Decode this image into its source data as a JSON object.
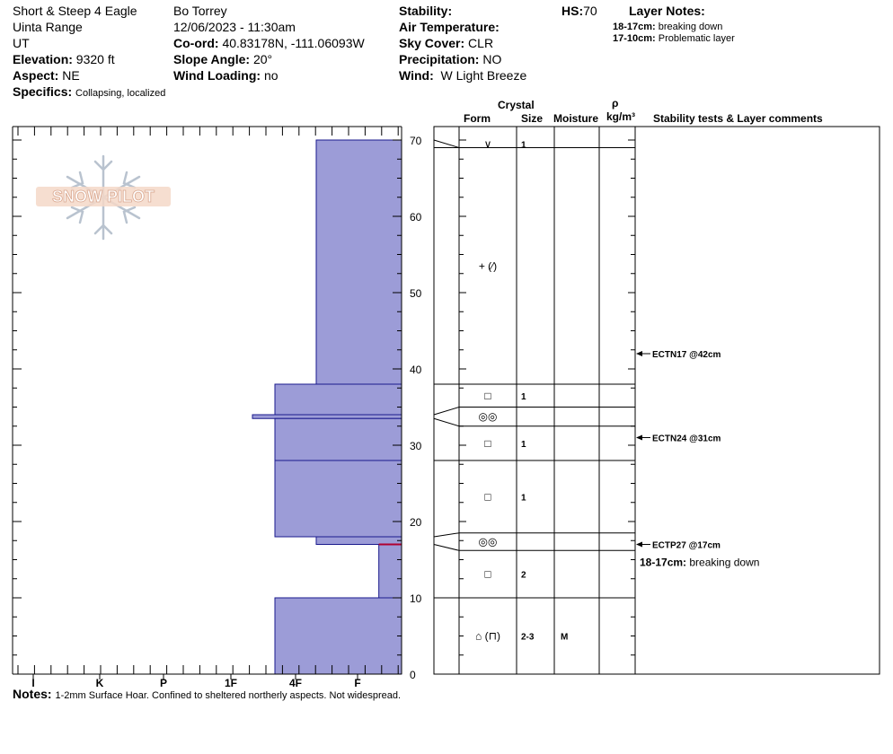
{
  "header": {
    "site": "Short & Steep 4 Eagle",
    "range": "Uinta Range",
    "state": "UT",
    "elevation_label": "Elevation:",
    "elevation": "9320 ft",
    "aspect_label": "Aspect:",
    "aspect": "NE",
    "specifics_label": "Specifics:",
    "specifics": "Collapsing, localized",
    "observer": "Bo Torrey",
    "datetime": "12/06/2023 - 11:30am",
    "coord_label": "Co-ord:",
    "coord": "40.83178N, -111.06093W",
    "slope_label": "Slope Angle:",
    "slope": "20°",
    "wind_loading_label": "Wind Loading:",
    "wind_loading": "no",
    "stability_label": "Stability:",
    "air_temp_label": "Air Temperature:",
    "sky_label": "Sky Cover:",
    "sky": "CLR",
    "precip_label": "Precipitation:",
    "precip": "NO",
    "wind_label": "Wind:",
    "wind": "W Light Breeze",
    "hs_label": "HS:",
    "hs": "70",
    "layer_notes_label": "Layer Notes:",
    "layer_notes": [
      {
        "range": "18-17cm:",
        "text": "breaking down"
      },
      {
        "range": "17-10cm:",
        "text": "Problematic layer"
      }
    ]
  },
  "columns": {
    "crystal": "Crystal",
    "form": "Form",
    "size": "Size",
    "moisture": "Moisture",
    "rho": "ρ",
    "density_unit": "kg/m³",
    "stability": "Stability tests & Layer comments"
  },
  "logo_text": "SNOW PILOT",
  "notes_label": "Notes:",
  "notes": "1-2mm Surface Hoar. Confined to sheltered northerly aspects. Not widespread.",
  "chart_data": {
    "type": "snow_profile",
    "hs": 70,
    "y_unit": "cm",
    "ylim": [
      0,
      70
    ],
    "y_ticks": [
      0,
      10,
      20,
      30,
      40,
      50,
      60,
      70
    ],
    "hardness_scale": [
      "I",
      "K",
      "P",
      "1F",
      "4F",
      "F"
    ],
    "hardness_layers": [
      {
        "top": 70,
        "bottom": 38,
        "hardness": "4F+"
      },
      {
        "top": 38,
        "bottom": 34,
        "hardness": "4F-"
      },
      {
        "top": 34,
        "bottom": 33.5,
        "hardness": "1F+"
      },
      {
        "top": 33.5,
        "bottom": 28,
        "hardness": "4F-"
      },
      {
        "top": 28,
        "bottom": 18,
        "hardness": "4F-"
      },
      {
        "top": 18,
        "bottom": 17,
        "hardness": "4F+"
      },
      {
        "top": 17,
        "bottom": 10,
        "hardness": "F+"
      },
      {
        "top": 10,
        "bottom": 0,
        "hardness": "4F-"
      }
    ],
    "red_marker_height": 17,
    "grain_layers": [
      {
        "top": 70,
        "bottom": 69,
        "form": "∨",
        "size": "1",
        "moisture": ""
      },
      {
        "top": 69,
        "bottom": 38,
        "form": "+ (∕)",
        "size": "",
        "moisture": ""
      },
      {
        "top": 38,
        "bottom": 35,
        "form": "□",
        "size": "1",
        "moisture": ""
      },
      {
        "top": 35,
        "bottom": 32.5,
        "form": "◎◎",
        "size": "",
        "moisture": ""
      },
      {
        "top": 32.5,
        "bottom": 28,
        "form": "□",
        "size": "1",
        "moisture": ""
      },
      {
        "top": 28,
        "bottom": 18.5,
        "form": "□",
        "size": "1",
        "moisture": ""
      },
      {
        "top": 18.5,
        "bottom": 16.2,
        "form": "◎◎",
        "size": "",
        "moisture": ""
      },
      {
        "top": 16.2,
        "bottom": 10,
        "form": "□",
        "size": "2",
        "moisture": ""
      },
      {
        "top": 10,
        "bottom": 0,
        "form": "⌂ (⊓)",
        "size": "2-3",
        "moisture": "M"
      }
    ],
    "stability_tests": [
      {
        "label": "ECTN17 @42cm",
        "height": 42
      },
      {
        "label": "ECTN24 @31cm",
        "height": 31
      },
      {
        "label": "ECTP27 @17cm",
        "height": 17
      }
    ],
    "layer_comment": {
      "range": "18-17cm:",
      "text": "breaking down"
    }
  }
}
